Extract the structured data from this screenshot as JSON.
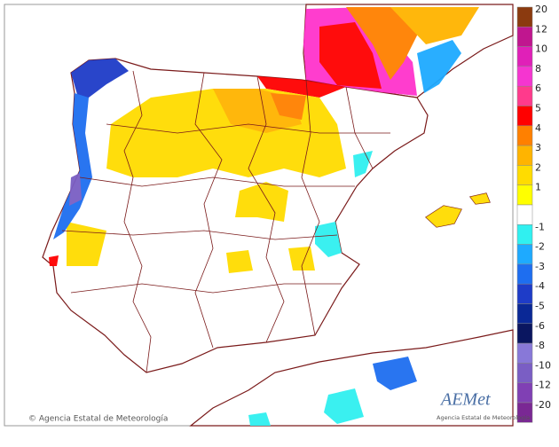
{
  "legend": {
    "positive": [
      {
        "label": "20",
        "color": "#8b3a0f"
      },
      {
        "label": "12",
        "color": "#c0168f"
      },
      {
        "label": "10",
        "color": "#e020b8"
      },
      {
        "label": "8",
        "color": "#f535d0"
      },
      {
        "label": "6",
        "color": "#ff3a8c"
      },
      {
        "label": "5",
        "color": "#ff0000"
      },
      {
        "label": "4",
        "color": "#ff8000"
      },
      {
        "label": "3",
        "color": "#ffb400"
      },
      {
        "label": "2",
        "color": "#ffdc00"
      },
      {
        "label": "1",
        "color": "#ffff00"
      }
    ],
    "negative": [
      {
        "label": "-1",
        "color": "#30f0f0"
      },
      {
        "label": "-2",
        "color": "#1eaaff"
      },
      {
        "label": "-3",
        "color": "#1e6ef0"
      },
      {
        "label": "-4",
        "color": "#1e3cc8"
      },
      {
        "label": "-5",
        "color": "#0a2896"
      },
      {
        "label": "-6",
        "color": "#0a1660"
      },
      {
        "label": "-8",
        "color": "#8878d8"
      },
      {
        "label": "-10",
        "color": "#7a5ec4"
      },
      {
        "label": "-12",
        "color": "#8040b4"
      },
      {
        "label": "-20",
        "color": "#7a2894"
      }
    ]
  },
  "footer": {
    "credit": "© Agencia Estatal de Meteorología"
  },
  "logo": {
    "name": "AEMet",
    "subtitle": "Agencia Estatal de Meteorología"
  }
}
